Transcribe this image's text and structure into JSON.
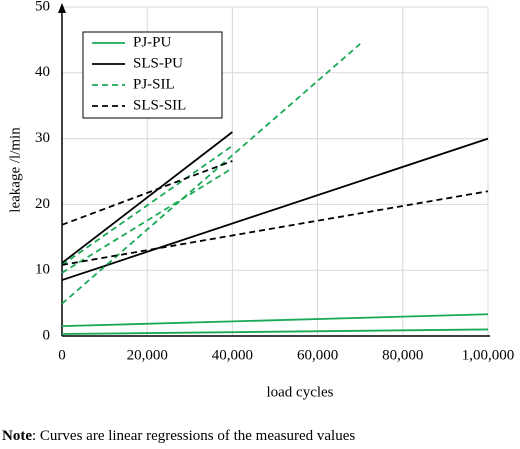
{
  "chart_data": {
    "type": "line",
    "xlabel": "load cycles",
    "ylabel": "leakage /l/min",
    "note_label": "Note",
    "note_text": ": Curves are linear regressions of the measured values",
    "xlim": [
      0,
      100000
    ],
    "ylim": [
      0,
      50
    ],
    "xticks": [
      0,
      {
        "value": 20000,
        "label": "20,000"
      },
      {
        "value": 40000,
        "label": "40,000"
      },
      {
        "value": 60000,
        "label": "60,000"
      },
      {
        "value": 80000,
        "label": "80,000"
      },
      {
        "value": 100000,
        "label": "1,00,000"
      }
    ],
    "yticks": [
      0,
      10,
      20,
      30,
      40,
      50
    ],
    "grid": true,
    "legend": "upper left",
    "series": [
      {
        "name": "PJ-PU",
        "color": "#1aaa55",
        "dashed": false,
        "lines": [
          {
            "x": [
              0,
              100000
            ],
            "values": [
              1.5,
              3.3
            ]
          },
          {
            "x": [
              0,
              100000
            ],
            "values": [
              0.3,
              1.0
            ]
          }
        ]
      },
      {
        "name": "SLS-PU",
        "color": "#000000",
        "dashed": false,
        "lines": [
          {
            "x": [
              0,
              100000
            ],
            "values": [
              8.5,
              30
            ]
          },
          {
            "x": [
              0,
              40000
            ],
            "values": [
              11.1,
              31
            ]
          }
        ]
      },
      {
        "name": "PJ-SIL",
        "color": "#1aaa55",
        "dashed": true,
        "lines": [
          {
            "x": [
              0,
              70000
            ],
            "values": [
              4.9,
              44.4
            ]
          },
          {
            "x": [
              0,
              40000
            ],
            "values": [
              9.6,
              25.5
            ]
          },
          {
            "x": [
              0,
              40000
            ],
            "values": [
              10.8,
              28.9
            ]
          }
        ]
      },
      {
        "name": "SLS-SIL",
        "color": "#000000",
        "dashed": true,
        "lines": [
          {
            "x": [
              0,
              40000
            ],
            "values": [
              16.9,
              26.6
            ]
          },
          {
            "x": [
              0,
              100000
            ],
            "values": [
              10.8,
              22.0
            ]
          }
        ]
      }
    ]
  }
}
